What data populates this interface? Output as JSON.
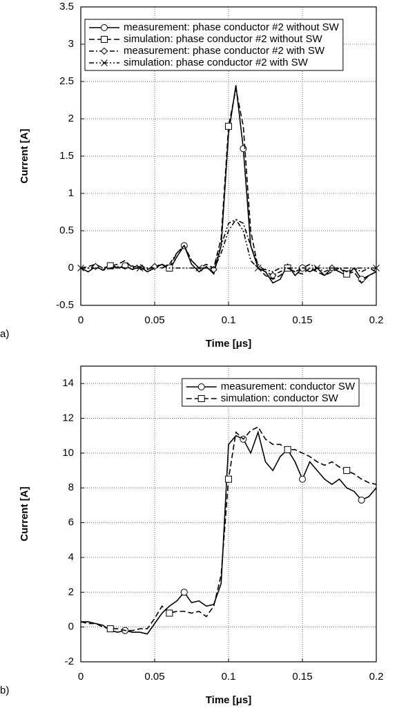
{
  "chart_data": [
    {
      "type": "line",
      "panel_label": "a)",
      "xlabel": "Time [μs]",
      "ylabel": "Current [A]",
      "x": [
        0,
        0.005,
        0.01,
        0.015,
        0.02,
        0.025,
        0.03,
        0.035,
        0.04,
        0.045,
        0.05,
        0.055,
        0.06,
        0.065,
        0.07,
        0.075,
        0.08,
        0.085,
        0.09,
        0.095,
        0.1,
        0.105,
        0.11,
        0.115,
        0.12,
        0.125,
        0.13,
        0.135,
        0.14,
        0.145,
        0.15,
        0.155,
        0.16,
        0.165,
        0.17,
        0.175,
        0.18,
        0.185,
        0.19,
        0.195,
        0.2
      ],
      "xlim": [
        0,
        0.2
      ],
      "xticks": [
        0,
        0.05,
        0.1,
        0.15,
        0.2
      ],
      "ylim": [
        -0.5,
        3.5
      ],
      "yticks": [
        -0.5,
        0,
        0.5,
        1,
        1.5,
        2,
        2.5,
        3,
        3.5
      ],
      "grid": true,
      "legend": "upper left",
      "series": [
        {
          "name": "measurement: phase conductor #2 without SW",
          "color": "#000000",
          "linestyle": "solid",
          "marker": "circle",
          "values": [
            0,
            -0.05,
            0.02,
            -0.03,
            0.05,
            0,
            0.03,
            -0.02,
            0.02,
            -0.05,
            0,
            0.05,
            -0.03,
            0.15,
            0.3,
            0.05,
            -0.05,
            0.02,
            -0.08,
            0.3,
            1.8,
            2.45,
            1.6,
            0.3,
            0,
            -0.05,
            -0.2,
            -0.15,
            0.05,
            -0.1,
            0,
            -0.05,
            0,
            -0.1,
            0,
            -0.05,
            -0.1,
            0,
            -0.15,
            -0.1,
            -0.05
          ]
        },
        {
          "name": "simulation: phase conductor #2 without SW",
          "color": "#000000",
          "linestyle": "dashed",
          "marker": "square",
          "values": [
            0,
            0.02,
            0.05,
            0,
            0.03,
            0.05,
            0.1,
            0,
            0.05,
            -0.02,
            0.02,
            0.05,
            0,
            0.2,
            0.3,
            0.1,
            0,
            0.05,
            0,
            0.4,
            1.9,
            2.4,
            1.9,
            0.5,
            0,
            -0.1,
            -0.15,
            -0.1,
            0,
            -0.05,
            -0.08,
            0,
            -0.05,
            -0.1,
            -0.05,
            0,
            -0.08,
            -0.05,
            -0.2,
            -0.1,
            -0.05
          ]
        },
        {
          "name": "measurement: phase conductor #2 with SW",
          "color": "#000000",
          "linestyle": "dashdot",
          "marker": "diamond",
          "values": [
            0,
            0,
            0.02,
            -0.03,
            0,
            0.02,
            0,
            0.03,
            -0.02,
            0,
            0.02,
            0,
            0.05,
            0.2,
            0.3,
            0.1,
            0,
            0,
            -0.02,
            0.2,
            0.5,
            0.65,
            0.6,
            0.3,
            0.05,
            -0.05,
            -0.1,
            -0.05,
            0,
            -0.05,
            0,
            0.05,
            0,
            -0.05,
            0,
            0,
            -0.05,
            0,
            -0.05,
            0,
            -0.05
          ]
        },
        {
          "name": "simulation: phase conductor #2 with SW",
          "color": "#000000",
          "linestyle": "dashdotdot",
          "marker": "x",
          "values": [
            0,
            0,
            0,
            0,
            0,
            0,
            0,
            0,
            0,
            0,
            0,
            0.05,
            0,
            0,
            0,
            0,
            0,
            0,
            0,
            0.3,
            0.6,
            0.65,
            0.5,
            0.1,
            0,
            -0.02,
            -0.05,
            0,
            0,
            0,
            0,
            0,
            0,
            0,
            0,
            0,
            0,
            0,
            0,
            0,
            0
          ]
        }
      ]
    },
    {
      "type": "line",
      "panel_label": "b)",
      "xlabel": "Time [μs]",
      "ylabel": "Current [A]",
      "x": [
        0,
        0.005,
        0.01,
        0.015,
        0.02,
        0.025,
        0.03,
        0.035,
        0.04,
        0.045,
        0.05,
        0.055,
        0.06,
        0.065,
        0.07,
        0.075,
        0.08,
        0.085,
        0.09,
        0.095,
        0.1,
        0.105,
        0.11,
        0.115,
        0.12,
        0.125,
        0.13,
        0.135,
        0.14,
        0.145,
        0.15,
        0.155,
        0.16,
        0.165,
        0.17,
        0.175,
        0.18,
        0.185,
        0.19,
        0.195,
        0.2
      ],
      "xlim": [
        0,
        0.2
      ],
      "xticks": [
        0,
        0.05,
        0.1,
        0.15,
        0.2
      ],
      "ylim": [
        -2,
        15
      ],
      "yticks": [
        -2,
        0,
        2,
        4,
        6,
        8,
        10,
        12,
        14
      ],
      "grid": true,
      "legend": "upper right",
      "series": [
        {
          "name": "measurement: conductor SW",
          "color": "#000000",
          "linestyle": "solid",
          "marker": "circle",
          "values": [
            0.3,
            0.3,
            0.2,
            0.1,
            -0.2,
            -0.3,
            -0.2,
            -0.3,
            -0.3,
            -0.4,
            0.2,
            0.8,
            1.2,
            1.5,
            2,
            1.4,
            1.5,
            1.2,
            1.3,
            2.5,
            10.5,
            11,
            10.8,
            10,
            11.2,
            9.5,
            9,
            9.8,
            10.2,
            9.5,
            8.5,
            9.5,
            9,
            8.5,
            8.2,
            8.5,
            8,
            7.8,
            7.3,
            7.5,
            8
          ]
        },
        {
          "name": "simulation: conductor SW",
          "color": "#000000",
          "linestyle": "dashed",
          "marker": "square",
          "values": [
            0.3,
            0.2,
            0.2,
            0,
            -0.1,
            -0.1,
            -0.2,
            -0.2,
            -0.1,
            -0.1,
            0.5,
            1.2,
            0.8,
            0.9,
            0.9,
            0.8,
            0.9,
            0.6,
            1.2,
            3,
            8.5,
            11.2,
            10.8,
            11.3,
            11.5,
            10.8,
            10.5,
            10.5,
            10.2,
            10.2,
            10,
            9.8,
            9.5,
            9.3,
            9.5,
            9.2,
            9,
            8.8,
            8.5,
            8.3,
            8.2
          ]
        }
      ]
    }
  ]
}
